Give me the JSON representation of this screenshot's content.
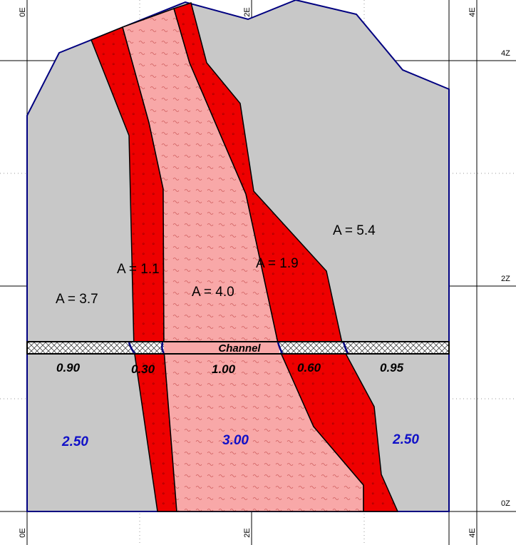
{
  "axes": {
    "x_ticks_top": [
      "0E",
      "2E",
      "4E"
    ],
    "x_ticks_bottom": [
      "0E",
      "2E",
      "4E"
    ],
    "z_ticks": [
      "4Z",
      "2Z",
      "0Z"
    ]
  },
  "regions": {
    "grey_left_area": "A = 3.7",
    "red_left_area": "A = 1.1",
    "pink_center_area": "A = 4.0",
    "red_right_area": "A = 1.9",
    "grey_right_area": "A = 5.4"
  },
  "channel": {
    "label": "Channel"
  },
  "channel_widths": [
    "0.90",
    "0.30",
    "1.00",
    "0.60",
    "0.95"
  ],
  "bottom_values": [
    "2.50",
    "3.00",
    "2.50"
  ],
  "colors": {
    "grey": "#c8c8c8",
    "red": "#ee0000",
    "pink": "#f8a8a8",
    "outline": "#000080",
    "blue_text": "#1010c8"
  }
}
